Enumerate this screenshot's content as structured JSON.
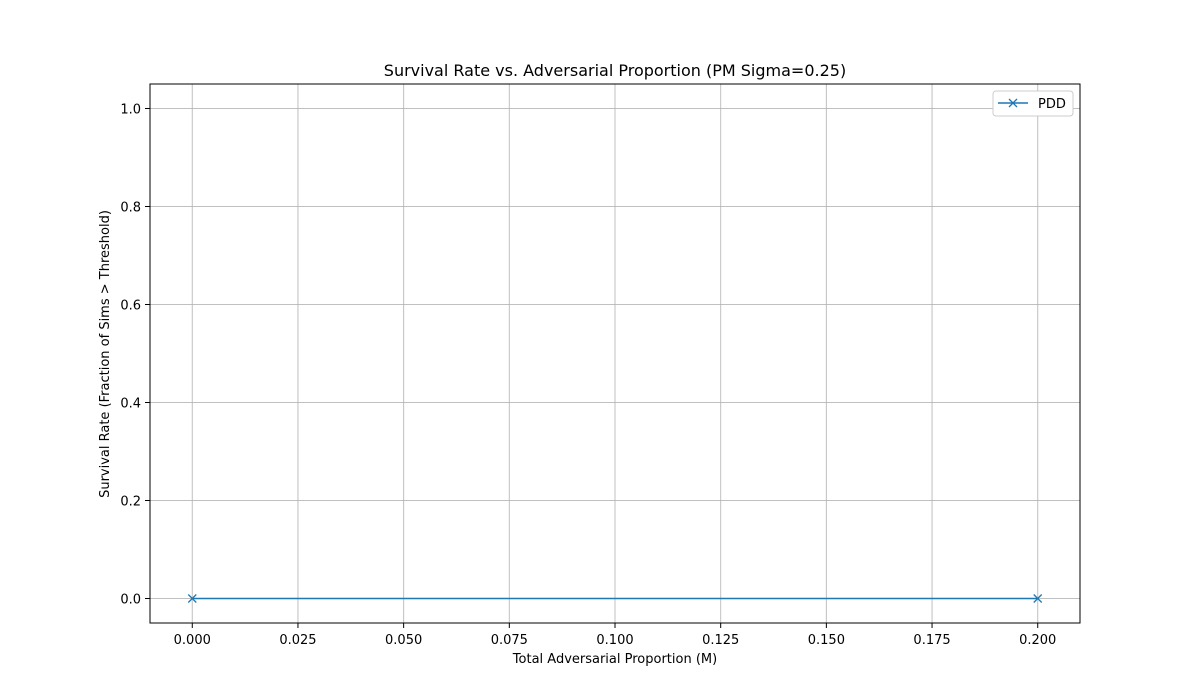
{
  "chart_data": {
    "type": "line",
    "title": "Survival Rate vs. Adversarial Proportion (PM Sigma=0.25)",
    "xlabel": "Total Adversarial Proportion (M)",
    "ylabel": "Survival Rate (Fraction of Sims > Threshold)",
    "xlim": [
      -0.01,
      0.21
    ],
    "ylim": [
      -0.05,
      1.05
    ],
    "xticks": [
      0.0,
      0.025,
      0.05,
      0.075,
      0.1,
      0.125,
      0.15,
      0.175,
      0.2
    ],
    "xtick_labels": [
      "0.000",
      "0.025",
      "0.050",
      "0.075",
      "0.100",
      "0.125",
      "0.150",
      "0.175",
      "0.200"
    ],
    "yticks": [
      0.0,
      0.2,
      0.4,
      0.6,
      0.8,
      1.0
    ],
    "ytick_labels": [
      "0.0",
      "0.2",
      "0.4",
      "0.6",
      "0.8",
      "1.0"
    ],
    "grid": true,
    "legend_position": "top-right",
    "series": [
      {
        "name": "PDD",
        "color": "#1f77b4",
        "marker": "x",
        "x": [
          0.0,
          0.2
        ],
        "y": [
          0.0,
          0.0
        ]
      }
    ]
  }
}
